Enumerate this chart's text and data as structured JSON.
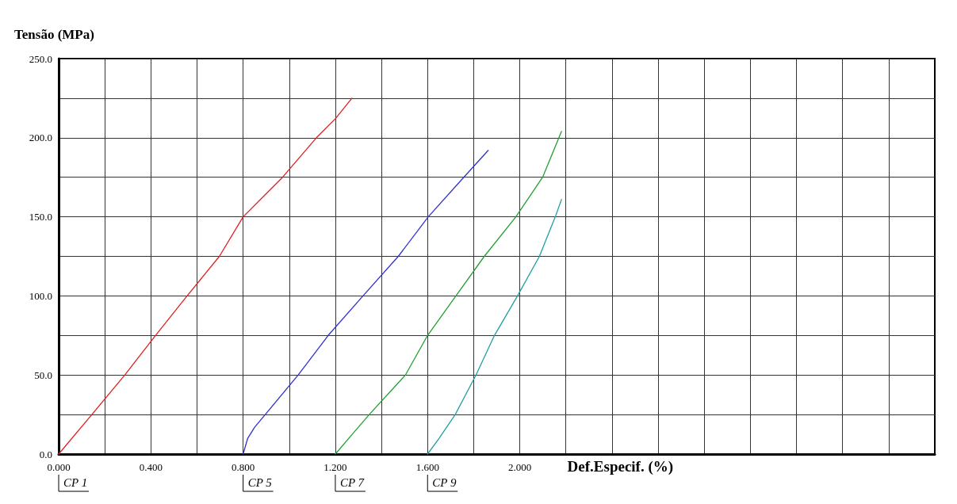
{
  "chart_data": {
    "type": "line",
    "ylabel": "Tensão (MPa)",
    "xlabel": "Def.Especif. (%)",
    "series": [
      {
        "color": "#e02020",
        "x": [
          0,
          0.144,
          0.287,
          0.42,
          0.557,
          0.697,
          0.8,
          0.971,
          1.118,
          1.2,
          1.272
        ],
        "values": [
          0,
          25,
          50,
          75,
          100,
          125,
          150,
          175,
          200,
          212,
          225
        ]
      },
      {
        "color": "#3030d0",
        "x": [
          0.8,
          0.82,
          0.85,
          0.896,
          1.039,
          1.169,
          1.32,
          1.473,
          1.603,
          1.757,
          1.863
        ],
        "values": [
          0,
          10,
          17,
          25,
          50,
          75,
          100,
          125,
          150,
          175,
          192
        ]
      },
      {
        "color": "#20a030",
        "x": [
          1.2,
          1.27,
          1.347,
          1.504,
          1.6,
          1.723,
          1.846,
          1.983,
          2.099,
          2.181
        ],
        "values": [
          0,
          12,
          25,
          50,
          75,
          100,
          125,
          150,
          175,
          204
        ]
      },
      {
        "color": "#20a0a0",
        "x": [
          1.6,
          1.65,
          1.72,
          1.81,
          1.89,
          1.99,
          2.085,
          2.154,
          2.181
        ],
        "values": [
          0,
          10,
          25,
          50,
          75,
          100,
          125,
          150,
          161
        ]
      }
    ],
    "xlim": [
      0,
      3.8
    ],
    "ylim": [
      0,
      250
    ],
    "xticks": [
      {
        "value": 0,
        "label": "0.000"
      },
      {
        "value": 0.2,
        "label": null
      },
      {
        "value": 0.4,
        "label": "0.400"
      },
      {
        "value": 0.6,
        "label": null
      },
      {
        "value": 0.8,
        "label": "0.800"
      },
      {
        "value": 1,
        "label": null
      },
      {
        "value": 1.2,
        "label": "1.200"
      },
      {
        "value": 1.4,
        "label": null
      },
      {
        "value": 1.6,
        "label": "1.600"
      },
      {
        "value": 1.8,
        "label": null
      },
      {
        "value": 2,
        "label": "2.000"
      },
      {
        "value": 2.2,
        "label": null
      },
      {
        "value": 2.4,
        "label": null
      },
      {
        "value": 2.6,
        "label": null
      },
      {
        "value": 2.8,
        "label": null
      },
      {
        "value": 3,
        "label": null
      },
      {
        "value": 3.2,
        "label": null
      },
      {
        "value": 3.4,
        "label": null
      },
      {
        "value": 3.6,
        "label": null
      }
    ],
    "yticks": [
      {
        "value": 0,
        "label": "0.0"
      },
      {
        "value": 25,
        "label": null
      },
      {
        "value": 50,
        "label": "50.0"
      },
      {
        "value": 75,
        "label": null
      },
      {
        "value": 100,
        "label": "100.0"
      },
      {
        "value": 125,
        "label": null
      },
      {
        "value": 150,
        "label": "150.0"
      },
      {
        "value": 175,
        "label": null
      },
      {
        "value": 200,
        "label": "200.0"
      },
      {
        "value": 225,
        "label": null
      },
      {
        "value": 250,
        "label": "250.0"
      }
    ],
    "annotations": [
      {
        "text": "CP 1",
        "x": 0,
        "y": 0
      },
      {
        "text": "CP 5",
        "x": 0.8,
        "y": 0
      },
      {
        "text": "CP 7",
        "x": 1.2,
        "y": 0
      },
      {
        "text": "CP 9",
        "x": 1.6,
        "y": 0
      }
    ],
    "grid": true,
    "marker": "none",
    "line_style": "solid"
  }
}
